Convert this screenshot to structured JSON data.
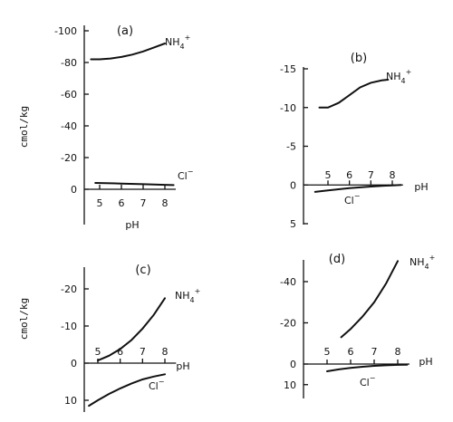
{
  "chart_data": [
    {
      "type": "line",
      "panel": "(a)",
      "ylabel": "cmol/kg",
      "xlabel": "pH",
      "ylim": [
        -10,
        100
      ],
      "xlim": [
        4.4,
        8.6
      ],
      "x_ticks": [
        "5",
        "6",
        "7",
        "8"
      ],
      "y_ticks": [
        {
          "value": 100,
          "label": "-100"
        },
        {
          "value": 80,
          "label": "-80"
        },
        {
          "value": 60,
          "label": "-60"
        },
        {
          "value": 40,
          "label": "-40"
        },
        {
          "value": 20,
          "label": "-20"
        },
        {
          "value": 0,
          "label": "0"
        }
      ],
      "series": [
        {
          "name": "NH4+",
          "x": [
            4.6,
            5.0,
            5.5,
            6.0,
            6.5,
            7.0,
            7.5,
            8.0
          ],
          "y": [
            82,
            82,
            82.5,
            83.5,
            85,
            87,
            89.5,
            92
          ]
        },
        {
          "name": "Cl−",
          "x": [
            4.8,
            6.0,
            7.0,
            8.0,
            8.4
          ],
          "y": [
            4,
            3.6,
            3.2,
            2.8,
            2.6
          ]
        }
      ]
    },
    {
      "type": "line",
      "panel": "(b)",
      "ylabel": "",
      "xlabel": "pH",
      "ylim": [
        -15,
        5
      ],
      "xlim": [
        4.4,
        8.6
      ],
      "x_ticks": [
        "5",
        "6",
        "7",
        "8"
      ],
      "y_ticks": [
        {
          "value": -15,
          "label": "-15"
        },
        {
          "value": -10,
          "label": "-10"
        },
        {
          "value": -5,
          "label": "-5"
        },
        {
          "value": 0,
          "label": "0"
        },
        {
          "value": 5,
          "label": "5"
        }
      ],
      "series": [
        {
          "name": "NH4+",
          "x": [
            4.6,
            5.0,
            5.5,
            6.0,
            6.5,
            7.0,
            7.5,
            7.8
          ],
          "y": [
            -10,
            -10,
            -10.6,
            -11.6,
            -12.6,
            -13.2,
            -13.5,
            -13.6
          ]
        },
        {
          "name": "Cl−",
          "x": [
            4.4,
            5.0,
            6.0,
            7.0,
            7.6,
            8.0,
            8.4
          ],
          "y": [
            0.9,
            0.7,
            0.4,
            0.2,
            0.1,
            0.05,
            0
          ]
        }
      ]
    },
    {
      "type": "line",
      "panel": "(c)",
      "ylabel": "cmol/kg",
      "xlabel": "pH",
      "ylim": [
        -25,
        12
      ],
      "xlim": [
        4.4,
        8.6
      ],
      "x_ticks": [
        "5",
        "6",
        "7",
        "8"
      ],
      "y_ticks": [
        {
          "value": -20,
          "label": "-20"
        },
        {
          "value": -10,
          "label": "-10"
        },
        {
          "value": 0,
          "label": "0"
        },
        {
          "value": 10,
          "label": "10"
        }
      ],
      "series": [
        {
          "name": "NH4+",
          "x": [
            5.0,
            5.5,
            6.0,
            6.5,
            7.0,
            7.5,
            8.0
          ],
          "y": [
            -0.7,
            -2,
            -3.8,
            -6.2,
            -9.3,
            -13,
            -17.5
          ]
        },
        {
          "name": "Cl−",
          "x": [
            4.6,
            5.0,
            5.5,
            6.0,
            6.5,
            7.0,
            7.5,
            8.0
          ],
          "y": [
            11.5,
            10,
            8.3,
            6.8,
            5.5,
            4.4,
            3.6,
            3
          ]
        }
      ]
    },
    {
      "type": "line",
      "panel": "(d)",
      "ylabel": "",
      "xlabel": "pH",
      "ylim": [
        -52,
        12
      ],
      "xlim": [
        4.4,
        8.6
      ],
      "x_ticks": [
        "5",
        "6",
        "7",
        "8"
      ],
      "y_ticks": [
        {
          "value": -40,
          "label": "-40"
        },
        {
          "value": -20,
          "label": "-20"
        },
        {
          "value": 0,
          "label": "0"
        },
        {
          "value": 10,
          "label": "10"
        }
      ],
      "series": [
        {
          "name": "NH4+",
          "x": [
            5.6,
            6.0,
            6.5,
            7.0,
            7.5,
            8.0
          ],
          "y": [
            -13,
            -17,
            -23,
            -30,
            -39,
            -50
          ]
        },
        {
          "name": "Cl−",
          "x": [
            5.0,
            5.5,
            6.0,
            6.5,
            7.0,
            7.5,
            8.0,
            8.4
          ],
          "y": [
            3.5,
            2.6,
            1.9,
            1.3,
            0.9,
            0.6,
            0.4,
            0.3
          ]
        }
      ]
    }
  ]
}
